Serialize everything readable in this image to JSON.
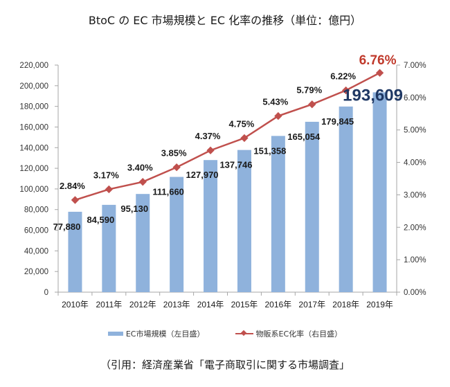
{
  "chart_data": {
    "type": "bar+line",
    "title": "BtoC の EC 市場規模と EC 化率の推移（単位：億円）",
    "categories": [
      "2010年",
      "2011年",
      "2012年",
      "2013年",
      "2014年",
      "2015年",
      "2016年",
      "2017年",
      "2018年",
      "2019年"
    ],
    "series": [
      {
        "name": "EC市場規模（左目盛）",
        "type": "bar",
        "axis": "left",
        "color": "#8fb2dc",
        "values": [
          77880,
          84590,
          95130,
          111660,
          127970,
          137746,
          151358,
          165054,
          179845,
          193609
        ],
        "labels": [
          "77,880",
          "84,590",
          "95,130",
          "111,660",
          "127,970",
          "137,746",
          "151,358",
          "165,054",
          "179,845",
          "193,609"
        ]
      },
      {
        "name": "物販系EC化率（右目盛）",
        "type": "line",
        "axis": "right",
        "color": "#c0504d",
        "values": [
          2.84,
          3.17,
          3.4,
          3.85,
          4.37,
          4.75,
          5.43,
          5.79,
          6.22,
          6.76
        ],
        "labels": [
          "2.84%",
          "3.17%",
          "3.40%",
          "3.85%",
          "4.37%",
          "4.75%",
          "5.43%",
          "5.79%",
          "6.22%",
          "6.76%"
        ]
      }
    ],
    "left_axis": {
      "ylim": [
        0,
        220000
      ],
      "ticks": [
        "0",
        "20,000",
        "40,000",
        "60,000",
        "80,000",
        "100,000",
        "120,000",
        "140,000",
        "160,000",
        "180,000",
        "200,000",
        "220,000"
      ]
    },
    "right_axis": {
      "ylim": [
        0,
        7
      ],
      "ticks": [
        "0.00%",
        "1.00%",
        "2.00%",
        "3.00%",
        "4.00%",
        "5.00%",
        "6.00%",
        "7.00%"
      ]
    },
    "highlight": {
      "bar_color": "#1f3864",
      "line_color": "#c0392b"
    },
    "grid": false,
    "legend_position": "bottom"
  },
  "legend": {
    "bar_label": "EC市場規模（左目盛）",
    "line_label": "物販系EC化率（右目盛）"
  },
  "source": "（引用：経済産業省「電子商取引に関する市場調査」"
}
